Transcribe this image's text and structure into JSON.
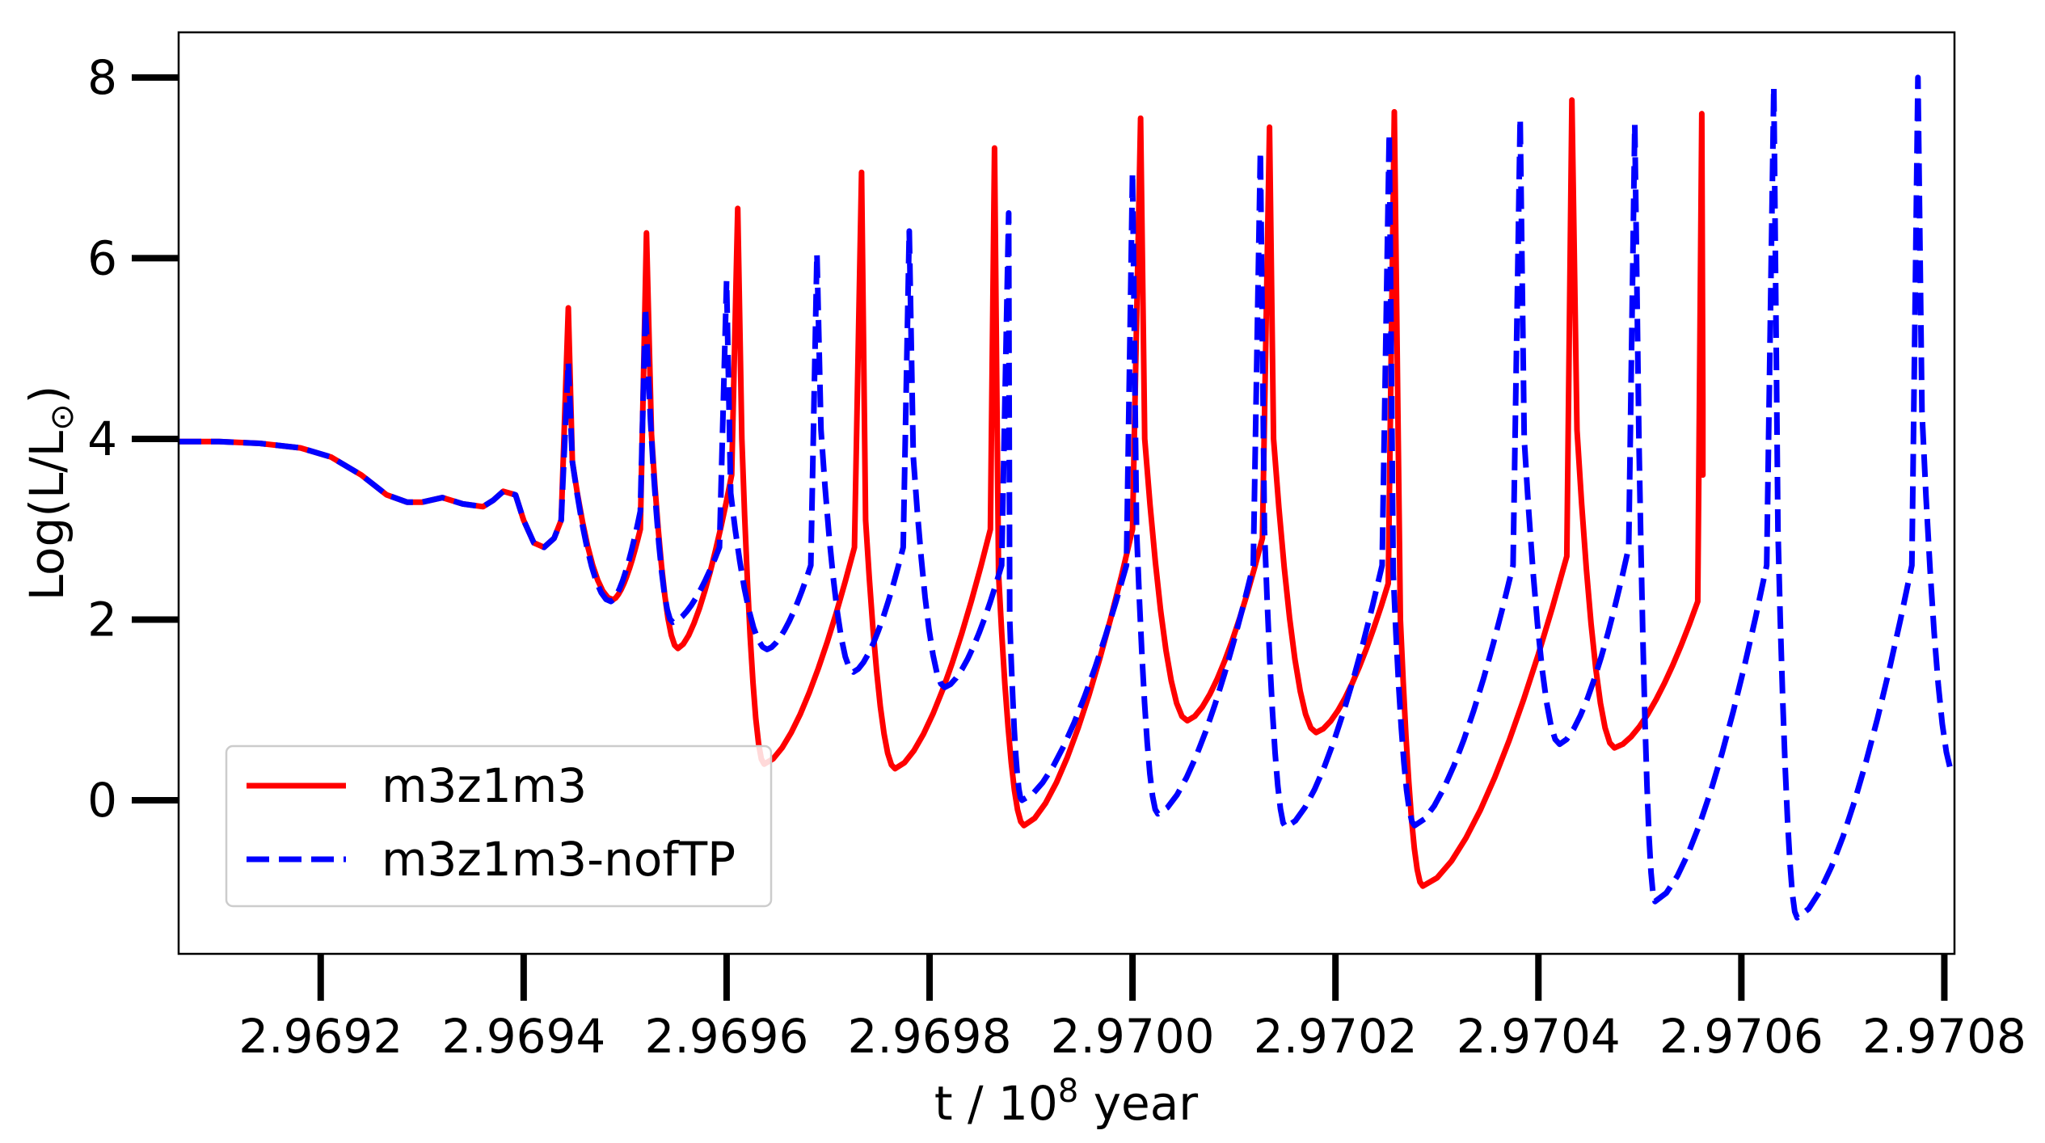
{
  "chart_data": {
    "type": "line",
    "title": "",
    "xlabel": "t / 10⁸ year",
    "ylabel": "Log(L/L⊙)",
    "xlim": [
      2.96906,
      2.97081
    ],
    "ylim": [
      -1.7,
      8.5
    ],
    "x_ticks": [
      2.9692,
      2.9694,
      2.9696,
      2.9698,
      2.97,
      2.9702,
      2.9704,
      2.9706,
      2.9708
    ],
    "x_tick_labels": [
      "2.9692",
      "2.9694",
      "2.9696",
      "2.9698",
      "2.9700",
      "2.9702",
      "2.9704",
      "2.9706",
      "2.9708"
    ],
    "y_ticks": [
      0,
      2,
      4,
      6,
      8
    ],
    "y_tick_labels": [
      "0",
      "2",
      "4",
      "6",
      "8"
    ],
    "grid": false,
    "legend_position": "lower-left",
    "colors": {
      "series1": "#ff0000",
      "series2": "#0000ff",
      "axes": "#000000"
    },
    "pre_phase": {
      "x": [
        2.96906,
        2.9691,
        2.96914,
        2.96918,
        2.96921,
        2.96924,
        2.969265,
        2.969285,
        2.9693,
        2.96932,
        2.96934,
        2.96936,
        2.96937,
        2.96938,
        2.969392,
        2.9694,
        2.96941,
        2.96942,
        2.96943,
        2.969437
      ],
      "y": [
        3.97,
        3.97,
        3.95,
        3.9,
        3.8,
        3.6,
        3.38,
        3.3,
        3.3,
        3.35,
        3.28,
        3.25,
        3.32,
        3.42,
        3.38,
        3.1,
        2.85,
        2.8,
        2.9,
        3.1
      ]
    },
    "series": [
      {
        "name": "m3z1m3",
        "style": "solid",
        "pulses": [
          {
            "peak_x": 2.969444,
            "peak_y": 5.45,
            "sec_x": 2.969448,
            "sec_y": 3.75,
            "min_x": 2.969488,
            "min_y": 2.22,
            "end_x": 2.969515,
            "end_y": 3.0
          },
          {
            "peak_x": 2.969521,
            "peak_y": 6.28,
            "sec_x": 2.969526,
            "sec_y": 4.05,
            "min_x": 2.969552,
            "min_y": 1.68,
            "end_x": 2.969605,
            "end_y": 3.6
          },
          {
            "peak_x": 2.969611,
            "peak_y": 6.55,
            "sec_x": 2.969615,
            "sec_y": 4.0,
            "min_x": 2.969637,
            "min_y": 0.4,
            "end_x": 2.969726,
            "end_y": 2.8
          },
          {
            "peak_x": 2.969733,
            "peak_y": 6.95,
            "sec_x": 2.969737,
            "sec_y": 3.1,
            "min_x": 2.969766,
            "min_y": 0.35,
            "end_x": 2.96986,
            "end_y": 3.0
          },
          {
            "peak_x": 2.969864,
            "peak_y": 7.22,
            "sec_x": 2.969868,
            "sec_y": 2.5,
            "min_x": 2.969893,
            "min_y": -0.28,
            "end_x": 2.97,
            "end_y": 3.0
          },
          {
            "peak_x": 2.970008,
            "peak_y": 7.55,
            "sec_x": 2.970012,
            "sec_y": 4.0,
            "min_x": 2.970054,
            "min_y": 0.88,
            "end_x": 2.970128,
            "end_y": 2.9
          },
          {
            "peak_x": 2.970135,
            "peak_y": 7.45,
            "sec_x": 2.970139,
            "sec_y": 4.0,
            "min_x": 2.970181,
            "min_y": 0.75,
            "end_x": 2.970252,
            "end_y": 2.4
          },
          {
            "peak_x": 2.970258,
            "peak_y": 7.62,
            "sec_x": 2.970264,
            "sec_y": 2.0,
            "min_x": 2.970286,
            "min_y": -0.95,
            "end_x": 2.970428,
            "end_y": 2.7
          },
          {
            "peak_x": 2.970433,
            "peak_y": 7.75,
            "sec_x": 2.970438,
            "sec_y": 4.1,
            "min_x": 2.970475,
            "min_y": 0.58,
            "end_x": 2.970557,
            "end_y": 2.2
          },
          {
            "peak_x": 2.970561,
            "peak_y": 7.6,
            "sec_x": 2.970562,
            "sec_y": 4.4,
            "min_x": 2.970562,
            "min_y": 3.6,
            "end_x": 2.970562,
            "end_y": 4.4
          }
        ]
      },
      {
        "name": "m3z1m3-nofTP",
        "style": "dashed",
        "pulses": [
          {
            "peak_x": 2.969444,
            "peak_y": 4.85,
            "sec_x": 2.969448,
            "sec_y": 3.75,
            "min_x": 2.969486,
            "min_y": 2.2,
            "end_x": 2.969515,
            "end_y": 3.2
          },
          {
            "peak_x": 2.96952,
            "peak_y": 5.45,
            "sec_x": 2.969525,
            "sec_y": 4.2,
            "min_x": 2.969547,
            "min_y": 1.97,
            "end_x": 2.969593,
            "end_y": 2.8
          },
          {
            "peak_x": 2.9696,
            "peak_y": 5.75,
            "sec_x": 2.969604,
            "sec_y": 3.4,
            "min_x": 2.96964,
            "min_y": 1.67,
            "end_x": 2.969683,
            "end_y": 2.6
          },
          {
            "peak_x": 2.969689,
            "peak_y": 6.05,
            "sec_x": 2.969693,
            "sec_y": 4.1,
            "min_x": 2.969725,
            "min_y": 1.42,
            "end_x": 2.969774,
            "end_y": 2.8
          },
          {
            "peak_x": 2.96978,
            "peak_y": 6.3,
            "sec_x": 2.969784,
            "sec_y": 3.8,
            "min_x": 2.969815,
            "min_y": 1.25,
            "end_x": 2.969871,
            "end_y": 2.6
          },
          {
            "peak_x": 2.969878,
            "peak_y": 6.5,
            "sec_x": 2.969879,
            "sec_y": 2.0,
            "min_x": 2.969891,
            "min_y": 0.0,
            "end_x": 2.969994,
            "end_y": 2.6
          },
          {
            "peak_x": 2.97,
            "peak_y": 6.95,
            "sec_x": 2.970004,
            "sec_y": 3.0,
            "min_x": 2.970025,
            "min_y": -0.15,
            "end_x": 2.970119,
            "end_y": 2.6
          },
          {
            "peak_x": 2.970126,
            "peak_y": 7.18,
            "sec_x": 2.97013,
            "sec_y": 3.0,
            "min_x": 2.970151,
            "min_y": -0.3,
            "end_x": 2.970246,
            "end_y": 2.6
          },
          {
            "peak_x": 2.970253,
            "peak_y": 7.38,
            "sec_x": 2.970257,
            "sec_y": 2.5,
            "min_x": 2.970278,
            "min_y": -0.28,
            "end_x": 2.970375,
            "end_y": 2.6
          },
          {
            "peak_x": 2.970382,
            "peak_y": 7.55,
            "sec_x": 2.970386,
            "sec_y": 4.0,
            "min_x": 2.970421,
            "min_y": 0.62,
            "end_x": 2.970489,
            "end_y": 2.8
          },
          {
            "peak_x": 2.970495,
            "peak_y": 7.48,
            "sec_x": 2.970499,
            "sec_y": 4.0,
            "min_x": 2.970515,
            "min_y": -1.12,
            "end_x": 2.970625,
            "end_y": 2.6
          },
          {
            "peak_x": 2.970632,
            "peak_y": 7.9,
            "sec_x": 2.970636,
            "sec_y": 3.0,
            "min_x": 2.970655,
            "min_y": -1.3,
            "end_x": 2.970768,
            "end_y": 2.6
          },
          {
            "peak_x": 2.970774,
            "peak_y": 8.0,
            "sec_x": 2.970778,
            "sec_y": 4.3,
            "min_x": 2.97081,
            "min_y": 0.28,
            "end_x": 2.97081,
            "end_y": 0.28
          }
        ]
      }
    ]
  }
}
